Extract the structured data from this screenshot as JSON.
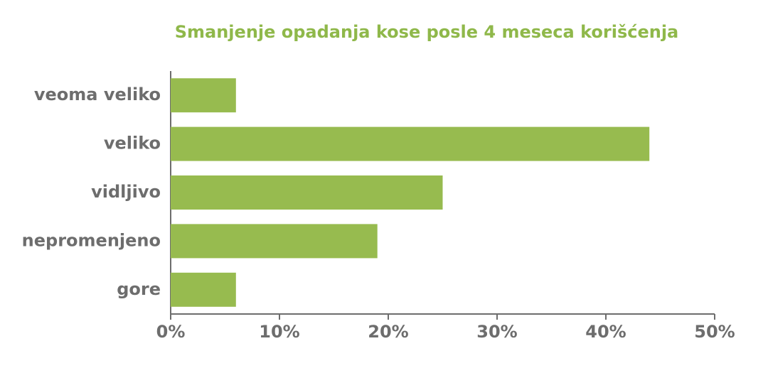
{
  "chart_data": {
    "type": "bar",
    "orientation": "horizontal",
    "title": "Smanjenje opadanja kose posle 4 meseca korišćenja",
    "categories": [
      "veoma veliko",
      "veliko",
      "vidljivo",
      "nepromenjeno",
      "gore"
    ],
    "values": [
      6,
      44,
      25,
      19,
      6
    ],
    "color": "#97bb4f",
    "xlim": [
      0,
      50
    ],
    "xticks": [
      {
        "value": 0,
        "label": "0%"
      },
      {
        "value": 10,
        "label": "10%"
      },
      {
        "value": 20,
        "label": "20%"
      },
      {
        "value": 30,
        "label": "30%"
      },
      {
        "value": 40,
        "label": "40%"
      },
      {
        "value": 50,
        "label": "50%"
      }
    ],
    "grid": false
  }
}
